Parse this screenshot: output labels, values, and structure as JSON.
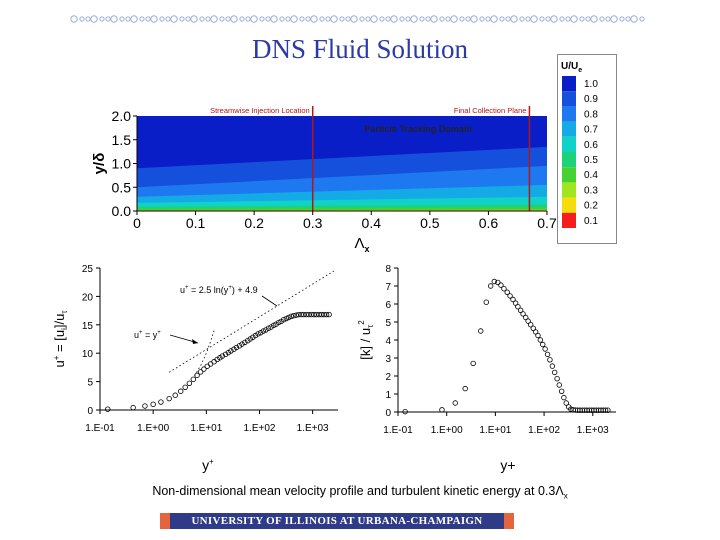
{
  "title": "DNS Fluid Solution",
  "caption": {
    "prefix": "Non-dimensional mean velocity profile and turbulent kinetic energy at 0.3",
    "symbol": "Λ",
    "sub": "x"
  },
  "footer": "UNIVERSITY OF ILLINOIS AT URBANA-CHAMPAIGN",
  "colors": {
    "title": "#2b3aa8",
    "footer_bar": "#2f3b86",
    "footer_accent": "#e4653d",
    "injection_line": "#b01818"
  },
  "chart_data": [
    {
      "type": "heatmap",
      "title": "",
      "xlabel": "Λx",
      "ylabel": "y/δ",
      "xlim": [
        0,
        0.7
      ],
      "ylim": [
        0,
        2.0
      ],
      "xticks": [
        "0",
        "0.1",
        "0.2",
        "0.3",
        "0.4",
        "0.5",
        "0.6",
        "0.7"
      ],
      "yticks": [
        "0.0",
        "0.5",
        "1.0",
        "1.5",
        "2.0"
      ],
      "annotations": {
        "injection": "Streamwise Injection Location",
        "collection": "Final Collection Plane",
        "domain": "Particle Tracking Domain"
      },
      "vertical_lines_x": [
        0.3,
        0.67
      ],
      "colorbar": {
        "title": "U/Ue",
        "levels": [
          "1.0",
          "0.9",
          "0.8",
          "0.7",
          "0.6",
          "0.5",
          "0.4",
          "0.3",
          "0.2",
          "0.1"
        ],
        "colors": [
          "#0a1ec8",
          "#1450dc",
          "#1e78f0",
          "#14aae6",
          "#10d2c8",
          "#1ed27a",
          "#46d232",
          "#a0e61e",
          "#f5dc0a",
          "#f51e1e"
        ]
      }
    },
    {
      "type": "scatter",
      "title": "",
      "xlabel": "y+",
      "ylabel": "u+ = [ui]/uτ",
      "xscale": "log",
      "xlim": [
        0.1,
        3000
      ],
      "ylim": [
        0,
        25
      ],
      "xticks": [
        "1.E-01",
        "1.E+00",
        "1.E+01",
        "1.E+02",
        "1.E+03"
      ],
      "yticks": [
        "0",
        "5",
        "10",
        "15",
        "20",
        "25"
      ],
      "annotations": {
        "log_law": "u+ = 2.5 ln(y+) + 4.9",
        "linear_law": "u+ = y+"
      },
      "x": [
        0.14,
        0.42,
        0.7,
        1.0,
        1.4,
        2.0,
        2.6,
        3.3,
        4.0,
        4.8,
        5.7,
        6.7,
        7.8,
        9.0,
        10.4,
        12,
        14,
        16,
        18,
        20,
        23,
        26,
        29,
        33,
        37,
        42,
        47,
        53,
        60,
        67,
        75,
        84,
        94,
        105,
        118,
        132,
        148,
        165,
        185,
        205,
        230,
        255,
        285,
        320,
        355,
        395,
        440,
        490,
        545,
        610,
        680,
        760,
        850,
        950,
        1060,
        1180,
        1320,
        1470,
        1640,
        1830,
        2040
      ],
      "y": [
        0.14,
        0.42,
        0.7,
        1.0,
        1.4,
        2.0,
        2.6,
        3.3,
        4.0,
        4.7,
        5.4,
        6.1,
        6.7,
        7.2,
        7.7,
        8.1,
        8.5,
        8.9,
        9.2,
        9.5,
        9.8,
        10.1,
        10.4,
        10.7,
        11.0,
        11.3,
        11.6,
        11.9,
        12.2,
        12.5,
        12.8,
        13.1,
        13.4,
        13.6,
        13.9,
        14.1,
        14.4,
        14.6,
        14.9,
        15.1,
        15.4,
        15.6,
        15.9,
        16.1,
        16.3,
        16.5,
        16.6,
        16.7,
        16.8,
        16.8,
        16.8,
        16.8,
        16.8,
        16.8,
        16.8,
        16.8,
        16.8,
        16.8,
        16.8,
        16.8,
        16.8
      ]
    },
    {
      "type": "scatter",
      "title": "",
      "xlabel": "y+",
      "ylabel": "[k] / uτ2",
      "xscale": "log",
      "xlim": [
        0.1,
        3000
      ],
      "ylim": [
        0,
        8
      ],
      "xticks": [
        "1.E-01",
        "1.E+00",
        "1.E+01",
        "1.E+02",
        "1.E+03"
      ],
      "yticks": [
        "0",
        "1",
        "2",
        "3",
        "4",
        "5",
        "6",
        "7",
        "8"
      ],
      "x": [
        0.14,
        0.8,
        1.5,
        2.4,
        3.5,
        5.0,
        6.5,
        8.0,
        9.5,
        11.2,
        13,
        15,
        17.5,
        20,
        23,
        26,
        29,
        33,
        37,
        42,
        47,
        53,
        60,
        67,
        75,
        84,
        94,
        105,
        118,
        132,
        148,
        165,
        185,
        205,
        230,
        255,
        285,
        320,
        355,
        395,
        440,
        490,
        545,
        610,
        680,
        760,
        850,
        950,
        1060,
        1180,
        1320,
        1470,
        1640,
        1830,
        2040
      ],
      "y": [
        0.02,
        0.12,
        0.5,
        1.3,
        2.7,
        4.5,
        6.1,
        7.0,
        7.25,
        7.2,
        7.05,
        6.85,
        6.65,
        6.45,
        6.25,
        6.05,
        5.85,
        5.65,
        5.45,
        5.25,
        5.05,
        4.85,
        4.65,
        4.45,
        4.25,
        4.0,
        3.75,
        3.5,
        3.2,
        2.9,
        2.55,
        2.2,
        1.85,
        1.5,
        1.15,
        0.8,
        0.5,
        0.28,
        0.16,
        0.12,
        0.11,
        0.1,
        0.1,
        0.1,
        0.1,
        0.1,
        0.1,
        0.1,
        0.1,
        0.1,
        0.1,
        0.1,
        0.1,
        0.1,
        0.1
      ]
    }
  ]
}
